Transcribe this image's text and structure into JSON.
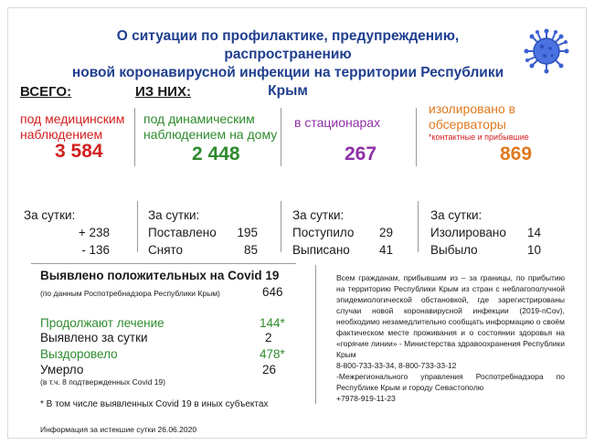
{
  "title_line1": "О ситуации по профилактике, предупреждению, распространению",
  "title_line2": "новой коронавирусной инфекции на территории Республики Крым",
  "total": {
    "header": "ВСЕГО:",
    "label_line1": "под медицинским",
    "label_line2": "наблюдением",
    "value": "3 584"
  },
  "of_them": {
    "header": "ИЗ НИХ:",
    "home_line1": "под динамическим",
    "home_line2": "наблюдением на дому",
    "home_value": "2  448",
    "hospital_label": "в стационарах",
    "hospital_value": "267",
    "obs_line1": "изолировано в",
    "obs_line2": "обсерваторы",
    "obs_note": "*контактные и прибывшие",
    "obs_value": "869"
  },
  "per_day": {
    "col1": {
      "title": "За сутки:",
      "r1_value": "+ 238",
      "r2_value": "-  136"
    },
    "col2": {
      "title": "За сутки:",
      "r1_label": "Поставлено",
      "r1_value": "195",
      "r2_label": "Снято",
      "r2_value": "85"
    },
    "col3": {
      "title": "За сутки:",
      "r1_label": "Поступило",
      "r1_value": "29",
      "r2_label": "Выписано",
      "r2_value": "41"
    },
    "col4": {
      "title": "За сутки:",
      "r1_label": "Изолировано",
      "r1_value": "14",
      "r2_label": "Выбыло",
      "r2_value": "10"
    }
  },
  "stats": {
    "detected_label": "Выявлено положительных на Covid 19",
    "detected_sub": "(по данным Роспотребнадзора Республики Крым)",
    "detected_value": "646",
    "treatment_label": "Продолжают лечение",
    "treatment_value": "144*",
    "day_label": "Выявлено за сутки",
    "day_value": "2",
    "recovered_label": "Выздоровело",
    "recovered_value": "478*",
    "died_label": "Умерло",
    "died_value": "26",
    "died_sub": "(в т.ч. 8 подтвержденных Covid 19)",
    "footnote": "* В том числе выявленных Covid 19  в иных субъектах"
  },
  "info": {
    "p1": "Всем гражданам, прибывшим из – за границы, по прибытию на территорию Республики Крым из стран с неблагополучной эпидемиологической обстановкой, где зарегистрированы случаи новой коронавирусной инфекции (2019-nCov), необходимо незамедлительно сообщать информацию о своём фактическом месте проживания и о состоянии здоровья на «горячие линии» - Министерства здравоохранения Республики Крым",
    "p2": "8-800-733-33-34, 8-800-733-33-12",
    "p3": "-Межрегионального управления Роспотребнадзора по Республике Крым и городу Севастополю",
    "p4": "+7978-919-11-23"
  },
  "footer": "Информация за истекшие сутки 26.06.2020",
  "colors": {
    "title": "#1f3f8f",
    "red": "#d32020",
    "green": "#2e8b2e",
    "purple": "#8e2fa6",
    "orange": "#e07a1f"
  }
}
